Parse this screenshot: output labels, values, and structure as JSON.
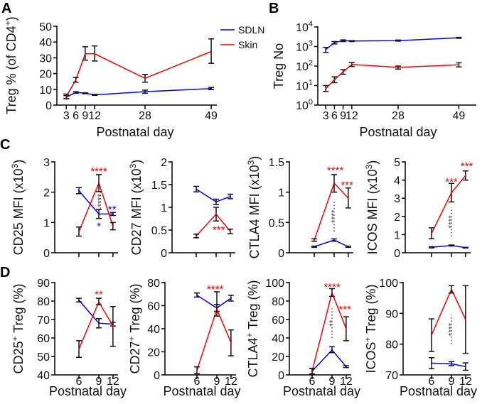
{
  "panel_letters": [
    "A",
    "B",
    "C",
    "D"
  ],
  "colors": {
    "SDLN": "#0000ff",
    "Skin": "#ff0000",
    "error_bar": "#000000"
  },
  "legend": [
    {
      "name": "SDLN",
      "color": "#0000ff"
    },
    {
      "name": "Skin",
      "color": "#ff0000"
    }
  ],
  "chart_data": [
    {
      "panel": "A",
      "type": "line",
      "xlabel": "Postnatal day",
      "ylabel": [
        {
          "t": "Treg % (of CD4"
        },
        {
          "t": "+",
          "sup": true
        },
        {
          "t": ")"
        }
      ],
      "ylim": [
        0,
        50
      ],
      "yscale": "linear",
      "yticks": [
        0,
        10,
        20,
        30,
        40,
        50
      ],
      "ytick_labels": [
        "0",
        "10",
        "20",
        "30",
        "40",
        "50"
      ],
      "xticks": [
        3,
        6,
        9,
        12,
        28,
        49
      ],
      "xtick_labels": [
        "3",
        "6",
        "9",
        "12",
        "28",
        "49"
      ],
      "series": [
        {
          "name": "SDLN",
          "x": [
            3,
            6,
            9,
            12,
            28,
            49
          ],
          "y": [
            5,
            8,
            7.5,
            6.5,
            8.5,
            10.5
          ],
          "err": [
            [
              4,
              6
            ],
            [
              7.5,
              8.5
            ],
            [
              7.2,
              7.8
            ],
            [
              6.2,
              6.8
            ],
            [
              7.5,
              9.5
            ],
            [
              9.8,
              11.2
            ]
          ]
        },
        {
          "name": "Skin",
          "x": [
            3,
            6,
            9,
            12,
            28,
            49
          ],
          "y": [
            5.5,
            16,
            32.5,
            32.5,
            17,
            34
          ],
          "err": [
            [
              4,
              7
            ],
            [
              14.5,
              17.5
            ],
            [
              28.5,
              37
            ],
            [
              28,
              37.5
            ],
            [
              14.5,
              19.5
            ],
            [
              26.5,
              42
            ]
          ]
        }
      ],
      "annotations": []
    },
    {
      "panel": "B",
      "type": "line",
      "xlabel": "Postnatal day",
      "ylabel": [
        {
          "t": "Treg No"
        }
      ],
      "ylim": [
        1,
        10000
      ],
      "yscale": "log",
      "yticks": [
        1,
        10,
        100,
        1000,
        10000
      ],
      "ytick_labels": [
        {
          "base": "10",
          "exp": "0"
        },
        {
          "base": "10",
          "exp": "1"
        },
        {
          "base": "10",
          "exp": "2"
        },
        {
          "base": "10",
          "exp": "3"
        },
        {
          "base": "10",
          "exp": "4"
        }
      ],
      "xticks": [
        3,
        6,
        9,
        12,
        28,
        49
      ],
      "xtick_labels": [
        "3",
        "6",
        "9",
        "12",
        "28",
        "49"
      ],
      "series": [
        {
          "name": "SDLN",
          "x": [
            3,
            6,
            9,
            12,
            28,
            49
          ],
          "y": [
            700,
            1600,
            2000,
            1900,
            2000,
            2800
          ],
          "err": [
            [
              500,
              900
            ],
            [
              1350,
              1800
            ],
            [
              1800,
              2200
            ],
            [
              1800,
              2000
            ],
            [
              1900,
              2150
            ],
            [
              2650,
              2950
            ]
          ]
        },
        {
          "name": "Skin",
          "x": [
            3,
            6,
            9,
            12,
            28,
            49
          ],
          "y": [
            7,
            20,
            50,
            120,
            85,
            115
          ],
          "err": [
            [
              5,
              10
            ],
            [
              14,
              28
            ],
            [
              38,
              65
            ],
            [
              95,
              150
            ],
            [
              70,
              100
            ],
            [
              90,
              145
            ]
          ]
        }
      ],
      "annotations": []
    },
    {
      "panel": "C1",
      "type": "line",
      "xlabel": "",
      "ylabel": [
        {
          "t": "CD25 MFI (x10"
        },
        {
          "t": "3",
          "sup": true
        },
        {
          "t": ")"
        }
      ],
      "ylim": [
        0,
        3
      ],
      "yscale": "linear",
      "yticks": [
        0,
        1,
        2,
        3
      ],
      "ytick_labels": [
        "0",
        "1",
        "2",
        "3"
      ],
      "xticks": [
        6,
        9,
        12
      ],
      "xtick_labels": [],
      "series": [
        {
          "name": "SDLN",
          "x": [
            6,
            9,
            12
          ],
          "y": [
            2.05,
            1.28,
            1.28
          ],
          "err": [
            [
              1.95,
              2.15
            ],
            [
              1.13,
              1.43
            ],
            [
              1.23,
              1.33
            ]
          ]
        },
        {
          "name": "Skin",
          "x": [
            6,
            9,
            12
          ],
          "y": [
            0.7,
            2.3,
            0.88
          ],
          "err": [
            [
              0.55,
              0.85
            ],
            [
              2.02,
              2.58
            ],
            [
              0.76,
              1.0
            ]
          ]
        }
      ],
      "annotations": [
        {
          "text": "****",
          "color": "#ff0000",
          "x": 9,
          "y": 2.72
        },
        {
          "text": "**",
          "color": "#0000ff",
          "x": 11.8,
          "y": 1.45
        },
        {
          "text": "*",
          "color": "#0000ff",
          "x": 9,
          "y": 0.9
        },
        {
          "text": "****",
          "color": "#555555",
          "x": 9.3,
          "y0": 1.45,
          "y1": 2.0,
          "vertical": true
        }
      ]
    },
    {
      "panel": "C2",
      "type": "line",
      "xlabel": "",
      "ylabel": [
        {
          "t": "CD27 MFI (x10"
        },
        {
          "t": "3",
          "sup": true
        },
        {
          "t": ")"
        }
      ],
      "ylim": [
        0,
        2
      ],
      "yscale": "linear",
      "yticks": [
        0,
        0.5,
        1,
        1.5,
        2
      ],
      "ytick_labels": [
        "0",
        "0.5",
        "1",
        "1.5",
        "2"
      ],
      "xticks": [
        6,
        9,
        12
      ],
      "xtick_labels": [],
      "series": [
        {
          "name": "SDLN",
          "x": [
            6,
            9,
            12
          ],
          "y": [
            1.4,
            1.12,
            1.24
          ],
          "err": [
            [
              1.34,
              1.46
            ],
            [
              1.06,
              1.18
            ],
            [
              1.19,
              1.29
            ]
          ]
        },
        {
          "name": "Skin",
          "x": [
            6,
            9,
            12
          ],
          "y": [
            0.37,
            0.85,
            0.47
          ],
          "err": [
            [
              0.33,
              0.41
            ],
            [
              0.7,
              1.0
            ],
            [
              0.42,
              0.52
            ]
          ]
        }
      ],
      "annotations": [
        {
          "text": "***",
          "color": "#ff0000",
          "x": 9.5,
          "y": 0.52
        }
      ]
    },
    {
      "panel": "C3",
      "type": "line",
      "xlabel": "",
      "ylabel": [
        {
          "t": "CTLA4 MFI (x10"
        },
        {
          "t": "3",
          "sup": true
        },
        {
          "t": ")"
        }
      ],
      "ylim": [
        0,
        1.5
      ],
      "yscale": "linear",
      "yticks": [
        0,
        0.5,
        1,
        1.5
      ],
      "ytick_labels": [
        "0",
        "0.5",
        "1",
        "1.5"
      ],
      "xticks": [
        6,
        9,
        12
      ],
      "xtick_labels": [],
      "series": [
        {
          "name": "SDLN",
          "x": [
            6,
            9,
            12
          ],
          "y": [
            0.1,
            0.21,
            0.1
          ],
          "err": [
            [
              0.09,
              0.11
            ],
            [
              0.19,
              0.23
            ],
            [
              0.09,
              0.11
            ]
          ]
        },
        {
          "name": "Skin",
          "x": [
            6,
            9,
            12
          ],
          "y": [
            0.21,
            1.15,
            0.9
          ],
          "err": [
            [
              0.19,
              0.23
            ],
            [
              1.0,
              1.29
            ],
            [
              0.74,
              1.07
            ]
          ]
        }
      ],
      "annotations": [
        {
          "text": "****",
          "color": "#ff0000",
          "x": 9.2,
          "y": 1.37
        },
        {
          "text": "***",
          "color": "#ff0000",
          "x": 11.7,
          "y": 1.13
        },
        {
          "text": "****",
          "color": "#555555",
          "x": 9,
          "y0": 0.35,
          "y1": 0.85,
          "vertical": true
        }
      ]
    },
    {
      "panel": "C4",
      "type": "line",
      "xlabel": "",
      "ylabel": [
        {
          "t": "ICOS MFI (x10"
        },
        {
          "t": "3",
          "sup": true
        },
        {
          "t": ")"
        }
      ],
      "ylim": [
        0,
        5
      ],
      "yscale": "linear",
      "yticks": [
        0,
        1,
        2,
        3,
        4,
        5
      ],
      "ytick_labels": [
        "0",
        "1",
        "2",
        "3",
        "4",
        "5"
      ],
      "xticks": [
        6,
        9,
        12
      ],
      "xtick_labels": [],
      "series": [
        {
          "name": "SDLN",
          "x": [
            6,
            9,
            12
          ],
          "y": [
            0.3,
            0.4,
            0.28
          ],
          "err": [
            [
              0.27,
              0.33
            ],
            [
              0.37,
              0.43
            ],
            [
              0.26,
              0.3
            ]
          ]
        },
        {
          "name": "Skin",
          "x": [
            6,
            9,
            12
          ],
          "y": [
            1.07,
            3.3,
            4.25
          ],
          "err": [
            [
              0.77,
              1.37
            ],
            [
              2.8,
              3.82
            ],
            [
              4.0,
              4.5
            ]
          ]
        }
      ],
      "annotations": [
        {
          "text": "***",
          "color": "#ff0000",
          "x": 9,
          "y": 3.95
        },
        {
          "text": "***",
          "color": "#ff0000",
          "x": 12.3,
          "y": 4.8
        },
        {
          "text": "****",
          "color": "#555555",
          "x": 9,
          "y0": 0.9,
          "y1": 2.5,
          "vertical": true
        }
      ]
    },
    {
      "panel": "D1",
      "type": "line",
      "xlabel": "Postnatal day",
      "ylabel": [
        {
          "t": "CD25"
        },
        {
          "t": "+",
          "sup": true
        },
        {
          "t": " Treg (%)"
        }
      ],
      "ylim": [
        40,
        90
      ],
      "yscale": "linear",
      "yticks": [
        40,
        50,
        60,
        70,
        80,
        90
      ],
      "ytick_labels": [
        "40",
        "50",
        "60",
        "70",
        "80",
        "90"
      ],
      "xticks": [
        6,
        9,
        12
      ],
      "xtick_labels": [
        "6",
        "9",
        "12"
      ],
      "series": [
        {
          "name": "SDLN",
          "x": [
            6,
            9,
            12
          ],
          "y": [
            80.5,
            68,
            67.5
          ],
          "err": [
            [
              79.5,
              81.5
            ],
            [
              65.5,
              70.5
            ],
            [
              66.5,
              68.5
            ]
          ]
        },
        {
          "name": "Skin",
          "x": [
            6,
            9,
            12
          ],
          "y": [
            54,
            79.5,
            66.5
          ],
          "err": [
            [
              49.5,
              58.5
            ],
            [
              78,
              81.5
            ],
            [
              55.5,
              77
            ]
          ]
        }
      ],
      "annotations": [
        {
          "text": "**",
          "color": "#ff0000",
          "x": 9,
          "y": 84
        }
      ]
    },
    {
      "panel": "D2",
      "type": "line",
      "xlabel": "Postnatal day",
      "ylabel": [
        {
          "t": "CD27"
        },
        {
          "t": "+",
          "sup": true
        },
        {
          "t": " Treg (%)"
        }
      ],
      "ylim": [
        0,
        80
      ],
      "yscale": "linear",
      "yticks": [
        0,
        20,
        40,
        60,
        80
      ],
      "ytick_labels": [
        "0",
        "20",
        "40",
        "60",
        "80"
      ],
      "xticks": [
        6,
        9,
        12
      ],
      "xtick_labels": [
        "6",
        "9",
        "12"
      ],
      "series": [
        {
          "name": "SDLN",
          "x": [
            6,
            9,
            12
          ],
          "y": [
            69,
            58,
            66.5
          ],
          "err": [
            [
              67.5,
              71
            ],
            [
              55,
              61
            ],
            [
              64,
              69
            ]
          ]
        },
        {
          "name": "Skin",
          "x": [
            6,
            9,
            12
          ],
          "y": [
            4,
            57,
            28
          ],
          "err": [
            [
              1,
              7
            ],
            [
              51,
              72
            ],
            [
              16.5,
              39
            ]
          ]
        }
      ],
      "annotations": [
        {
          "text": "****",
          "color": "#ff0000",
          "x": 8.7,
          "y": 75
        }
      ]
    },
    {
      "panel": "D3",
      "type": "line",
      "xlabel": "Postnatal day",
      "ylabel": [
        {
          "t": "CTLA4"
        },
        {
          "t": "+",
          "sup": true
        },
        {
          "t": " Treg (%)"
        }
      ],
      "ylim": [
        0,
        100
      ],
      "yscale": "linear",
      "yticks": [
        0,
        20,
        40,
        60,
        80,
        100
      ],
      "ytick_labels": [
        "0",
        "20",
        "40",
        "60",
        "80",
        "100"
      ],
      "xticks": [
        6,
        9,
        12
      ],
      "xtick_labels": [
        "6",
        "9",
        "12"
      ],
      "series": [
        {
          "name": "SDLN",
          "x": [
            6,
            9,
            12
          ],
          "y": [
            4,
            27,
            9
          ],
          "err": [
            [
              1,
              7
            ],
            [
              24,
              30.5
            ],
            [
              8,
              10
            ]
          ]
        },
        {
          "name": "Skin",
          "x": [
            6,
            9,
            12
          ],
          "y": [
            4,
            89,
            50
          ],
          "err": [
            [
              1,
              7
            ],
            [
              85,
              93.5
            ],
            [
              37,
              63
            ]
          ]
        }
      ],
      "annotations": [
        {
          "text": "****",
          "color": "#ff0000",
          "x": 9,
          "y": 96
        },
        {
          "text": "***",
          "color": "#ff0000",
          "x": 11.7,
          "y": 72
        },
        {
          "text": "**",
          "color": "#555555",
          "x": 9,
          "y0": 40,
          "y1": 72,
          "vertical": true
        }
      ]
    },
    {
      "panel": "D4",
      "type": "line",
      "xlabel": "Postnatal day",
      "ylabel": [
        {
          "t": "ICOS"
        },
        {
          "t": "+",
          "sup": true
        },
        {
          "t": " Treg (%)"
        }
      ],
      "ylim": [
        70,
        100
      ],
      "yscale": "linear",
      "yticks": [
        70,
        80,
        90,
        100
      ],
      "ytick_labels": [
        "70",
        "80",
        "90",
        "100"
      ],
      "xticks": [
        6,
        9,
        12
      ],
      "xtick_labels": [
        "6",
        "9",
        "12"
      ],
      "series": [
        {
          "name": "SDLN",
          "x": [
            6,
            9,
            12
          ],
          "y": [
            73.8,
            73.6,
            72.7
          ],
          "err": [
            [
              72,
              75.6
            ],
            [
              73,
              74.3
            ],
            [
              71.5,
              73.9
            ]
          ]
        },
        {
          "name": "Skin",
          "x": [
            6,
            9,
            12
          ],
          "y": [
            83,
            97.8,
            88
          ],
          "err": [
            [
              77.6,
              88.2
            ],
            [
              96.6,
              99
            ],
            [
              77,
              99
            ]
          ]
        }
      ],
      "annotations": [
        {
          "text": "****",
          "color": "#555555",
          "x": 9,
          "y0": 80,
          "y1": 89.5,
          "vertical": true
        }
      ]
    }
  ]
}
